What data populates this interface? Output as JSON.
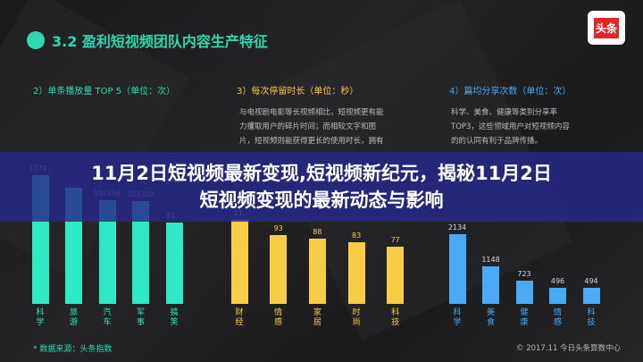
{
  "header": {
    "title": "3.2 盈利短视频团队内容生产特征",
    "logo": "头条"
  },
  "sections": [
    {
      "title": "2）单条播放量 TOP 5（单位：次）",
      "color": "#2fd8b2"
    },
    {
      "title": "3）每次停留时长（单位：秒）",
      "color": "#f5c84a",
      "text": [
        "与电视剧电影等长视频相比，短视频更有能",
        "力攫取用户的碎片时间；而相较文字和图",
        "片，短视频则能获得更长的使用时长，拥有"
      ]
    },
    {
      "title": "4）篇均分享次数（单位：次）",
      "color": "#4aa8f0",
      "text": [
        "科学、美食、健康等类别分享率",
        "TOP3，这些领域用户对短视频内容",
        "的的认同有利于品牌传播。"
      ]
    }
  ],
  "chart_data": [
    {
      "type": "bar",
      "color": "#2fe8c4",
      "categories": [
        "科学",
        "旅游",
        "汽车",
        "军事",
        "搞笑"
      ],
      "values": [
        127800,
        115000,
        103156,
        102324,
        81000
      ],
      "labels": [
        "1278..",
        "",
        "103156",
        "102324",
        "81..."
      ]
    },
    {
      "type": "bar",
      "color": "#f7cd46",
      "categories": [
        "财经",
        "情感",
        "家居",
        "时尚",
        "科技"
      ],
      "values": [
        113,
        93,
        88,
        83,
        77
      ],
      "labels": [
        "11.",
        "93",
        "88",
        "83",
        "77"
      ]
    },
    {
      "type": "bar",
      "color": "#4aaaf5",
      "categories": [
        "科学",
        "美食",
        "健康",
        "情感",
        "科技"
      ],
      "values": [
        2134,
        1148,
        723,
        496,
        494
      ],
      "labels": [
        "2134",
        "1148",
        "723",
        "496",
        "494"
      ]
    }
  ],
  "footer": {
    "source": "* 数据来源：头条指数",
    "copyright": "© 2017.11 今日头条算数中心"
  },
  "banner": {
    "line1": "11月2日短视频最新变现,短视频新纪元，揭秘11月2日",
    "line2": "短视频变现的最新动态与影响"
  }
}
